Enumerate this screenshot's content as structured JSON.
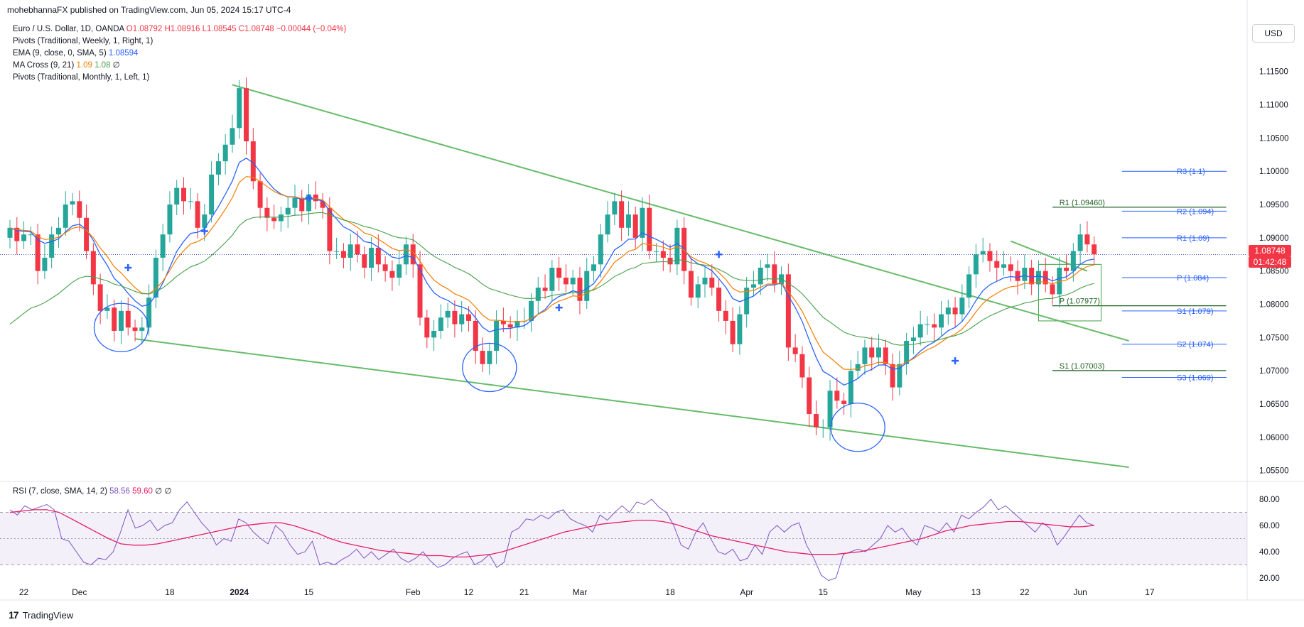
{
  "publisher": "mohebhannaFX published on TradingView.com, Jun 05, 2024 15:17 UTC-4",
  "legend": {
    "symbol": "Euro / U.S. Dollar, 1D, OANDA",
    "o": "O1.08792",
    "h": "H1.08916",
    "l": "L1.08545",
    "c": "C1.08748",
    "chg": "−0.00044 (−0.04%)",
    "pivots_weekly": "Pivots (Traditional, Weekly, 1, Right, 1)",
    "ema_label": "EMA (9, close, 0, SMA, 5)",
    "ema_value": "1.08594",
    "ma_cross_label": "MA Cross (9, 21)",
    "ma_cross_v1": "1.09",
    "ma_cross_v2": "1.08",
    "ma_cross_v3": "∅",
    "pivots_monthly": "Pivots (Traditional, Monthly, 1, Left, 1)"
  },
  "currency_button": "USD",
  "last_price": "1.08748",
  "countdown": "01:42:48",
  "brand": "TradingView",
  "rsi_legend": {
    "label": "RSI (7, close, SMA, 14, 2)",
    "v1": "58.56",
    "v2": "59.60",
    "v3": "∅",
    "v4": "∅"
  },
  "colors": {
    "up": "#26a69a",
    "down": "#f23645",
    "ema": "#2962ff",
    "ma9": "#f57c00",
    "ma21": "#43a047",
    "trend": "#66bb6a",
    "rsi": "#7e57c2",
    "rsi_ma": "#e91e63",
    "circle": "#2962ff",
    "pivot_w": "#2962ff",
    "pivot_m": "#1b5e20"
  },
  "chart_data": {
    "type": "candlestick",
    "price_axis": {
      "min": 1.054,
      "max": 1.117,
      "ticks": [
        "1.05500",
        "1.06000",
        "1.06500",
        "1.07000",
        "1.07500",
        "1.08000",
        "1.08500",
        "1.09000",
        "1.09500",
        "1.10000",
        "1.10500",
        "1.11000",
        "1.11500"
      ]
    },
    "rsi_axis": {
      "min": 14,
      "max": 86,
      "ticks": [
        "20.00",
        "40.00",
        "60.00",
        "80.00"
      ],
      "band": [
        30,
        70
      ],
      "mid": 50
    },
    "x_ticks": [
      {
        "i": 2,
        "label": "22"
      },
      {
        "i": 10,
        "label": "Dec"
      },
      {
        "i": 23,
        "label": "18"
      },
      {
        "i": 33,
        "label": "2024"
      },
      {
        "i": 43,
        "label": "15"
      },
      {
        "i": 58,
        "label": "Feb"
      },
      {
        "i": 66,
        "label": "12"
      },
      {
        "i": 74,
        "label": "21"
      },
      {
        "i": 82,
        "label": "Mar"
      },
      {
        "i": 95,
        "label": "18"
      },
      {
        "i": 106,
        "label": "Apr"
      },
      {
        "i": 117,
        "label": "15"
      },
      {
        "i": 130,
        "label": "May"
      },
      {
        "i": 139,
        "label": "13"
      },
      {
        "i": 146,
        "label": "22"
      },
      {
        "i": 154,
        "label": "Jun"
      },
      {
        "i": 164,
        "label": "17"
      }
    ],
    "closes": [
      1.0915,
      1.0895,
      1.0905,
      1.0905,
      1.085,
      1.087,
      1.0905,
      1.0915,
      1.095,
      1.0955,
      1.093,
      1.088,
      1.083,
      1.079,
      1.0795,
      1.076,
      1.079,
      1.0765,
      1.076,
      1.0765,
      1.081,
      1.087,
      1.0905,
      1.095,
      1.0975,
      1.0955,
      1.0955,
      1.0915,
      1.0935,
      1.0995,
      1.1015,
      1.104,
      1.1065,
      1.1125,
      1.1045,
      1.0985,
      1.0945,
      1.093,
      1.0925,
      1.0935,
      1.0945,
      1.096,
      1.094,
      1.0965,
      1.0955,
      1.0945,
      1.088,
      1.088,
      1.087,
      1.089,
      1.0875,
      1.0855,
      1.0885,
      1.086,
      1.085,
      1.084,
      1.086,
      1.089,
      1.086,
      1.078,
      1.075,
      1.076,
      1.078,
      1.079,
      1.077,
      1.0785,
      1.0775,
      1.073,
      1.071,
      1.073,
      1.0775,
      1.077,
      1.0765,
      1.0775,
      1.0775,
      1.0805,
      1.0825,
      1.082,
      1.0855,
      1.084,
      1.083,
      1.084,
      1.0805,
      1.085,
      1.086,
      1.0905,
      1.0935,
      1.0955,
      1.0915,
      1.0935,
      1.09,
      1.0945,
      1.088,
      1.088,
      1.087,
      1.086,
      1.0915,
      1.085,
      1.081,
      1.083,
      1.084,
      1.0825,
      1.079,
      1.0775,
      1.074,
      1.0785,
      1.0825,
      1.083,
      1.0855,
      1.086,
      1.083,
      1.0845,
      1.0735,
      1.0725,
      1.069,
      1.0635,
      1.0615,
      1.0615,
      1.067,
      1.0655,
      1.065,
      1.07,
      1.071,
      1.0735,
      1.072,
      1.0735,
      1.071,
      1.0675,
      1.071,
      1.0745,
      1.075,
      1.077,
      1.077,
      1.0765,
      1.0785,
      1.0795,
      1.0785,
      1.081,
      1.0845,
      1.0875,
      1.088,
      1.0865,
      1.0855,
      1.086,
      1.085,
      1.0835,
      1.0855,
      1.083,
      1.085,
      1.083,
      1.0815,
      1.0855,
      1.085,
      1.088,
      1.0905,
      1.089,
      1.0875
    ],
    "candles_note": "daily OHLC of EUR/USD, roughly Nov 20 2023 – Jun 05 2024",
    "rsi": [
      72,
      68,
      75,
      72,
      74,
      76,
      72,
      50,
      48,
      40,
      32,
      30,
      35,
      34,
      40,
      55,
      72,
      58,
      60,
      64,
      56,
      60,
      62,
      72,
      78,
      70,
      62,
      56,
      45,
      50,
      48,
      65,
      62,
      55,
      50,
      46,
      60,
      55,
      45,
      38,
      40,
      48,
      30,
      32,
      30,
      34,
      37,
      42,
      35,
      40,
      34,
      38,
      42,
      35,
      32,
      35,
      40,
      33,
      28,
      30,
      35,
      38,
      40,
      30,
      33,
      38,
      28,
      32,
      55,
      58,
      65,
      64,
      68,
      65,
      70,
      72,
      65,
      62,
      60,
      55,
      68,
      64,
      70,
      75,
      70,
      78,
      76,
      80,
      74,
      70,
      60,
      45,
      42,
      55,
      62,
      50,
      40,
      38,
      42,
      33,
      35,
      45,
      38,
      55,
      60,
      55,
      60,
      62,
      45,
      35,
      22,
      18,
      20,
      38,
      40,
      42,
      40,
      45,
      50,
      60,
      55,
      58,
      50,
      45,
      60,
      58,
      55,
      62,
      55,
      68,
      65,
      70,
      74,
      80,
      72,
      75,
      70,
      65,
      60,
      55,
      62,
      58,
      45,
      52,
      60,
      68,
      62,
      60
    ],
    "ma9": [
      1.0895,
      1.088,
      1.0872,
      1.087,
      1.0865,
      1.0855,
      1.084,
      1.082,
      1.0805,
      1.08,
      1.081,
      1.083,
      1.0855,
      1.088,
      1.0905,
      1.0935,
      1.0955,
      1.0975,
      1.099,
      1.1005,
      1.1005,
      1.0985,
      1.0965,
      1.0955,
      1.0945,
      1.0935,
      1.093,
      1.093,
      1.092,
      1.0905,
      1.0895,
      1.088,
      1.087,
      1.086,
      1.085,
      1.0835,
      1.0815,
      1.08,
      1.0785,
      1.0775,
      1.077,
      1.077,
      1.0775,
      1.0785,
      1.08,
      1.0815,
      1.0825,
      1.084,
      1.0855,
      1.0875,
      1.089,
      1.09,
      1.0905,
      1.0905,
      1.09,
      1.089,
      1.0875,
      1.086,
      1.0845,
      1.0835,
      1.083,
      1.0825,
      1.082,
      1.081,
      1.0795,
      1.078,
      1.075,
      1.072,
      1.07,
      1.068,
      1.067,
      1.068,
      1.07,
      1.0715,
      1.073,
      1.0745,
      1.076,
      1.078,
      1.08,
      1.082,
      1.084,
      1.0855,
      1.086,
      1.086,
      1.0855
    ],
    "ma21": [
      1.079,
      1.08,
      1.0805,
      1.081,
      1.0815,
      1.0822,
      1.0828,
      1.0835,
      1.0842,
      1.085,
      1.086,
      1.087,
      1.088,
      1.089,
      1.09,
      1.091,
      1.092,
      1.093,
      1.0935,
      1.0937,
      1.0935,
      1.093,
      1.0925,
      1.0915,
      1.09,
      1.0885,
      1.087,
      1.0855,
      1.084,
      1.0825,
      1.0815,
      1.081,
      1.0805,
      1.08,
      1.0798,
      1.08,
      1.0805,
      1.0815,
      1.0825,
      1.084,
      1.0855,
      1.0868,
      1.0875,
      1.088,
      1.0878,
      1.087,
      1.086,
      1.085,
      1.084,
      1.0825,
      1.081,
      1.0795,
      1.078,
      1.0765,
      1.075,
      1.074,
      1.073,
      1.0725,
      1.072,
      1.0722,
      1.073,
      1.0745,
      1.076,
      1.0775,
      1.079,
      1.0805,
      1.082,
      1.0835
    ],
    "rsi_ma": [
      70,
      71,
      72,
      72,
      70,
      65,
      60,
      55,
      50,
      46,
      45,
      45,
      46,
      48,
      50,
      52,
      54,
      56,
      58,
      60,
      61,
      62,
      62,
      60,
      57,
      54,
      50,
      47,
      45,
      43,
      41,
      40,
      39,
      38,
      37,
      37,
      36,
      36,
      37,
      38,
      40,
      43,
      46,
      49,
      52,
      55,
      57,
      59,
      61,
      62,
      63,
      64,
      64,
      63,
      61,
      58,
      55,
      52,
      50,
      48,
      46,
      44,
      42,
      40,
      39,
      38,
      38,
      38,
      39,
      40,
      42,
      44,
      46,
      48,
      50,
      53,
      56,
      58,
      60,
      61,
      62,
      63,
      63,
      62,
      61,
      60,
      59,
      59,
      60
    ],
    "pivots_weekly": [
      {
        "label": "R3 (1.1)",
        "value": 1.1
      },
      {
        "label": "R2 (1.094)",
        "value": 1.094
      },
      {
        "label": "R1 (1.09)",
        "value": 1.09
      },
      {
        "label": "P (1.084)",
        "value": 1.084
      },
      {
        "label": "S1 (1.079)",
        "value": 1.079
      },
      {
        "label": "S2 (1.074)",
        "value": 1.074
      },
      {
        "label": "S3 (1.069)",
        "value": 1.069
      }
    ],
    "pivots_monthly": [
      {
        "label": "R1 (1.09460)",
        "value": 1.0946
      },
      {
        "label": "P (1.07977)",
        "value": 1.07977
      },
      {
        "label": "S1 (1.07003)",
        "value": 1.07003
      }
    ],
    "trendlines": [
      {
        "name": "upper",
        "from": [
          32,
          1.113
        ],
        "to": [
          161,
          1.0745
        ]
      },
      {
        "name": "lower",
        "from": [
          18,
          1.0748
        ],
        "to": [
          161,
          1.0555
        ]
      },
      {
        "name": "flag",
        "from": [
          144,
          1.0895
        ],
        "to": [
          155,
          1.085
        ]
      }
    ],
    "circles": [
      {
        "i": 16,
        "p": 1.0765
      },
      {
        "i": 69,
        "p": 1.0705
      },
      {
        "i": 122,
        "p": 1.0615
      }
    ],
    "cross_markers": [
      {
        "i": 17,
        "p": 1.0855
      },
      {
        "i": 28,
        "p": 1.091
      },
      {
        "i": 43,
        "p": 1.096
      },
      {
        "i": 79,
        "p": 1.0795
      },
      {
        "i": 102,
        "p": 1.0875
      },
      {
        "i": 136,
        "p": 1.0715
      }
    ]
  }
}
